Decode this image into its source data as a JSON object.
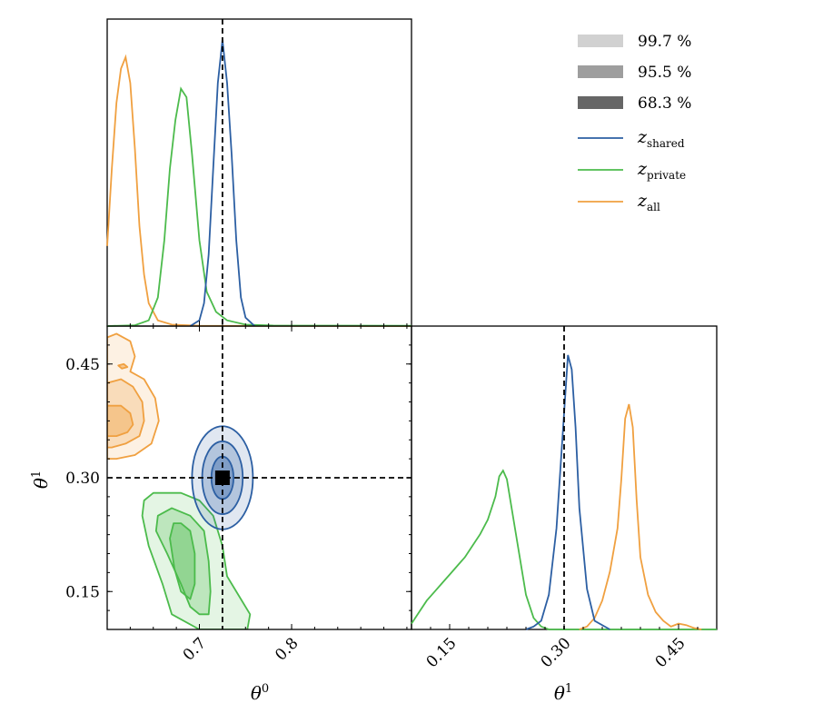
{
  "chart_data": {
    "type": "corner",
    "parameters": [
      {
        "symbol": "θ",
        "superscript": "0",
        "ticks": [
          0.7,
          0.8
        ],
        "tick_labels": [
          "0.7",
          "0.8"
        ],
        "range": [
          0.6,
          0.93
        ]
      },
      {
        "symbol": "θ",
        "superscript": "1",
        "ticks": [
          0.15,
          0.3,
          0.45
        ],
        "tick_labels": [
          "0.15",
          "0.30",
          "0.45"
        ],
        "range": [
          0.1,
          0.5
        ]
      }
    ],
    "truth": {
      "theta0": 0.725,
      "theta1": 0.3
    },
    "legend": {
      "placement": "top-right",
      "bands": [
        {
          "label": "99.7 %",
          "opacity": 0.18
        },
        {
          "label": "95.5 %",
          "opacity": 0.38
        },
        {
          "label": "68.3 %",
          "opacity": 0.6
        }
      ],
      "series": [
        {
          "key": "shared",
          "base": "z",
          "sub": "shared",
          "color": "#2c5fa3"
        },
        {
          "key": "private",
          "base": "z",
          "sub": "private",
          "color": "#4cbb4c"
        },
        {
          "key": "all",
          "base": "z",
          "sub": "all",
          "color": "#f0a040"
        }
      ]
    },
    "marginals": {
      "theta0": {
        "shared": [
          [
            0.69,
            0
          ],
          [
            0.7,
            0.02
          ],
          [
            0.705,
            0.08
          ],
          [
            0.71,
            0.25
          ],
          [
            0.715,
            0.55
          ],
          [
            0.72,
            0.85
          ],
          [
            0.725,
            1.0
          ],
          [
            0.73,
            0.85
          ],
          [
            0.735,
            0.6
          ],
          [
            0.74,
            0.3
          ],
          [
            0.745,
            0.1
          ],
          [
            0.75,
            0.03
          ],
          [
            0.76,
            0
          ]
        ],
        "private": [
          [
            0.6,
            0
          ],
          [
            0.63,
            0.003
          ],
          [
            0.645,
            0.02
          ],
          [
            0.655,
            0.1
          ],
          [
            0.662,
            0.3
          ],
          [
            0.668,
            0.55
          ],
          [
            0.674,
            0.72
          ],
          [
            0.68,
            0.83
          ],
          [
            0.686,
            0.8
          ],
          [
            0.692,
            0.6
          ],
          [
            0.7,
            0.3
          ],
          [
            0.708,
            0.12
          ],
          [
            0.718,
            0.05
          ],
          [
            0.73,
            0.02
          ],
          [
            0.75,
            0.005
          ],
          [
            0.78,
            0.002
          ],
          [
            0.93,
            0.001
          ]
        ],
        "all": [
          [
            0.6,
            0.28
          ],
          [
            0.605,
            0.55
          ],
          [
            0.61,
            0.78
          ],
          [
            0.615,
            0.9
          ],
          [
            0.62,
            0.94
          ],
          [
            0.625,
            0.85
          ],
          [
            0.63,
            0.62
          ],
          [
            0.635,
            0.35
          ],
          [
            0.64,
            0.18
          ],
          [
            0.645,
            0.08
          ],
          [
            0.655,
            0.02
          ],
          [
            0.67,
            0.005
          ],
          [
            0.7,
            0.001
          ],
          [
            0.93,
            0
          ]
        ]
      },
      "theta1": {
        "shared": [
          [
            0.25,
            0
          ],
          [
            0.26,
            0.01
          ],
          [
            0.27,
            0.03
          ],
          [
            0.28,
            0.12
          ],
          [
            0.29,
            0.35
          ],
          [
            0.3,
            0.75
          ],
          [
            0.305,
            0.95
          ],
          [
            0.31,
            0.9
          ],
          [
            0.315,
            0.7
          ],
          [
            0.32,
            0.42
          ],
          [
            0.33,
            0.14
          ],
          [
            0.34,
            0.03
          ],
          [
            0.36,
            0
          ]
        ],
        "private": [
          [
            0.1,
            0.02
          ],
          [
            0.11,
            0.06
          ],
          [
            0.12,
            0.1
          ],
          [
            0.13,
            0.13
          ],
          [
            0.14,
            0.16
          ],
          [
            0.15,
            0.19
          ],
          [
            0.16,
            0.22
          ],
          [
            0.17,
            0.25
          ],
          [
            0.18,
            0.29
          ],
          [
            0.19,
            0.33
          ],
          [
            0.2,
            0.38
          ],
          [
            0.21,
            0.46
          ],
          [
            0.215,
            0.53
          ],
          [
            0.22,
            0.55
          ],
          [
            0.225,
            0.52
          ],
          [
            0.23,
            0.44
          ],
          [
            0.24,
            0.28
          ],
          [
            0.25,
            0.12
          ],
          [
            0.26,
            0.04
          ],
          [
            0.27,
            0.01
          ],
          [
            0.28,
            0
          ],
          [
            0.5,
            0
          ]
        ],
        "all": [
          [
            0.32,
            0
          ],
          [
            0.33,
            0.01
          ],
          [
            0.34,
            0.04
          ],
          [
            0.35,
            0.1
          ],
          [
            0.36,
            0.2
          ],
          [
            0.37,
            0.35
          ],
          [
            0.375,
            0.52
          ],
          [
            0.38,
            0.73
          ],
          [
            0.385,
            0.78
          ],
          [
            0.39,
            0.7
          ],
          [
            0.395,
            0.45
          ],
          [
            0.4,
            0.25
          ],
          [
            0.41,
            0.12
          ],
          [
            0.42,
            0.06
          ],
          [
            0.43,
            0.03
          ],
          [
            0.44,
            0.01
          ],
          [
            0.45,
            0.02
          ],
          [
            0.46,
            0.015
          ],
          [
            0.47,
            0.005
          ],
          [
            0.48,
            0
          ]
        ]
      }
    },
    "joint": {
      "shared": {
        "center": [
          0.725,
          0.3
        ],
        "contours": [
          {
            "level": "68.3 %",
            "rx": 0.012,
            "ry": 0.028
          },
          {
            "level": "95.5 %",
            "rx": 0.022,
            "ry": 0.048
          },
          {
            "level": "99.7 %",
            "rx": 0.033,
            "ry": 0.068
          }
        ]
      },
      "private": {
        "contours": [
          {
            "level": "68.3 %",
            "polygon": [
              [
                0.68,
                0.24
              ],
              [
                0.69,
                0.23
              ],
              [
                0.695,
                0.2
              ],
              [
                0.695,
                0.16
              ],
              [
                0.69,
                0.14
              ],
              [
                0.68,
                0.15
              ],
              [
                0.673,
                0.18
              ],
              [
                0.668,
                0.22
              ],
              [
                0.672,
                0.24
              ]
            ]
          },
          {
            "level": "95.5 %",
            "polygon": [
              [
                0.67,
                0.26
              ],
              [
                0.69,
                0.25
              ],
              [
                0.705,
                0.23
              ],
              [
                0.71,
                0.19
              ],
              [
                0.712,
                0.15
              ],
              [
                0.71,
                0.12
              ],
              [
                0.7,
                0.12
              ],
              [
                0.69,
                0.13
              ],
              [
                0.68,
                0.16
              ],
              [
                0.665,
                0.2
              ],
              [
                0.653,
                0.23
              ],
              [
                0.655,
                0.25
              ]
            ]
          },
          {
            "level": "99.7 %",
            "polygon": [
              [
                0.65,
                0.28
              ],
              [
                0.68,
                0.28
              ],
              [
                0.7,
                0.27
              ],
              [
                0.715,
                0.25
              ],
              [
                0.725,
                0.21
              ],
              [
                0.73,
                0.17
              ],
              [
                0.745,
                0.14
              ],
              [
                0.755,
                0.12
              ],
              [
                0.752,
                0.1
              ],
              [
                0.7,
                0.1
              ],
              [
                0.67,
                0.12
              ],
              [
                0.66,
                0.16
              ],
              [
                0.645,
                0.21
              ],
              [
                0.638,
                0.25
              ],
              [
                0.64,
                0.27
              ]
            ]
          }
        ]
      },
      "all": {
        "contours": [
          {
            "level": "68.3 %",
            "polygon": [
              [
                0.6,
                0.395
              ],
              [
                0.615,
                0.395
              ],
              [
                0.625,
                0.385
              ],
              [
                0.628,
                0.37
              ],
              [
                0.622,
                0.36
              ],
              [
                0.61,
                0.355
              ],
              [
                0.6,
                0.355
              ]
            ]
          },
          {
            "level": "95.5 %",
            "polygon": [
              [
                0.6,
                0.425
              ],
              [
                0.615,
                0.43
              ],
              [
                0.628,
                0.42
              ],
              [
                0.638,
                0.4
              ],
              [
                0.64,
                0.375
              ],
              [
                0.635,
                0.355
              ],
              [
                0.62,
                0.345
              ],
              [
                0.605,
                0.34
              ],
              [
                0.6,
                0.34
              ]
            ]
          },
          {
            "level": "99.7 %",
            "polygon": [
              [
                0.6,
                0.485
              ],
              [
                0.61,
                0.49
              ],
              [
                0.625,
                0.48
              ],
              [
                0.63,
                0.46
              ],
              [
                0.625,
                0.44
              ],
              [
                0.64,
                0.43
              ],
              [
                0.652,
                0.405
              ],
              [
                0.656,
                0.375
              ],
              [
                0.648,
                0.345
              ],
              [
                0.63,
                0.33
              ],
              [
                0.61,
                0.325
              ],
              [
                0.6,
                0.325
              ]
            ]
          },
          {
            "level": "islet",
            "polygon": [
              [
                0.612,
                0.448
              ],
              [
                0.618,
                0.45
              ],
              [
                0.622,
                0.446
              ],
              [
                0.616,
                0.444
              ]
            ]
          }
        ]
      }
    },
    "truth_marker": {
      "shape": "square",
      "color": "#000000"
    }
  }
}
